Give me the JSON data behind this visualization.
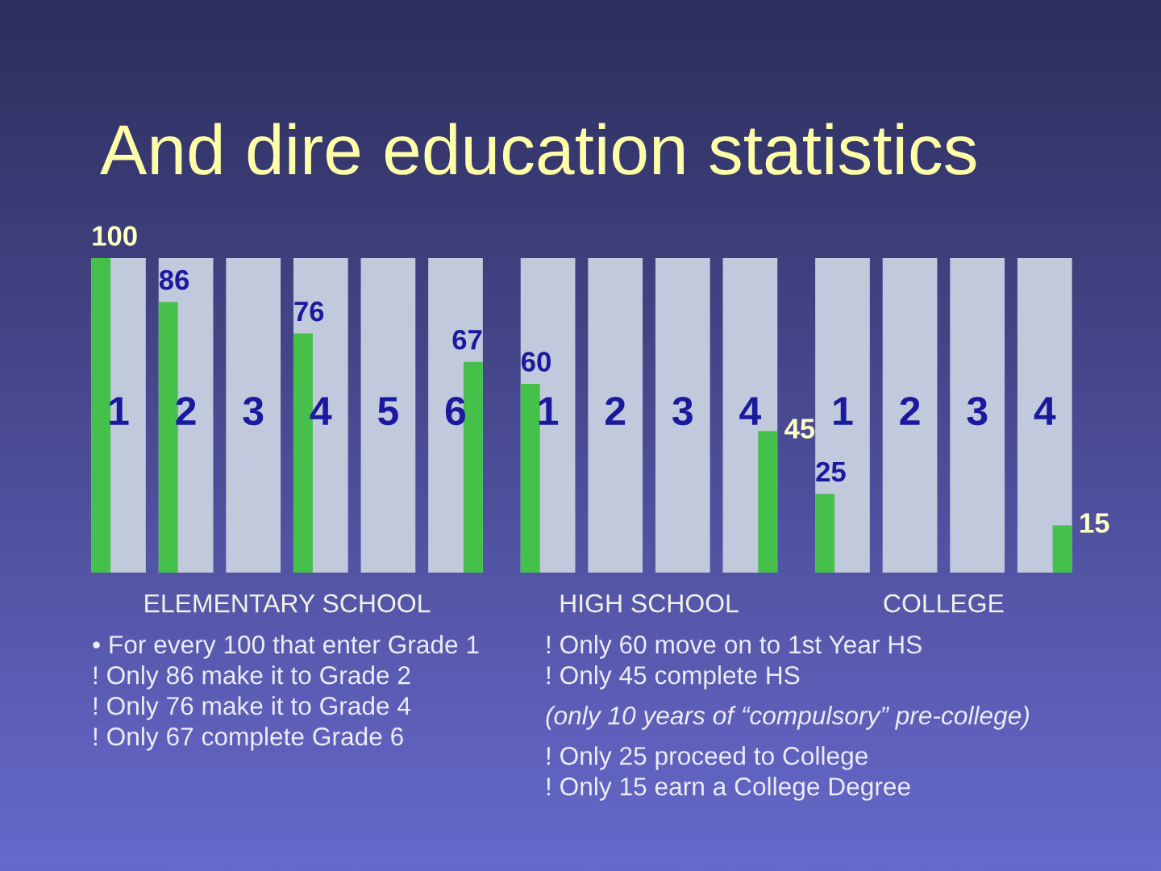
{
  "chart_data": [
    {
      "type": "bar",
      "title": "And dire education statistics",
      "xlabel": "ELEMENTARY SCHOOL",
      "categories": [
        "1",
        "2",
        "3",
        "4",
        "5",
        "6"
      ],
      "series": [
        {
          "color": "#c1c9dc",
          "values": [
            100,
            100,
            100,
            100,
            100,
            100
          ]
        },
        {
          "color": "#45c04b",
          "values": [
            100,
            86,
            null,
            76,
            null,
            null
          ],
          "value_labels": [
            "100",
            "86",
            null,
            "76",
            null,
            null
          ]
        },
        {
          "color": "#45c04b",
          "values": [
            null,
            null,
            null,
            null,
            null,
            67
          ],
          "value_labels": [
            null,
            null,
            null,
            null,
            null,
            "67"
          ]
        }
      ],
      "annotations": [
        "• For every 100 that enter Grade 1",
        "! Only 86 make it to Grade 2",
        "! Only 76 make it to Grade 4",
        "! Only 67 complete Grade 6"
      ]
    },
    {
      "type": "bar",
      "xlabel": "HIGH SCHOOL",
      "categories": [
        "1",
        "2",
        "3",
        "4"
      ],
      "series": [
        {
          "color": "#c1c9dc",
          "values": [
            100,
            100,
            100,
            100
          ]
        },
        {
          "color": "#45c04b",
          "values": [
            60,
            null,
            null,
            null
          ],
          "value_labels": [
            "60",
            null,
            null,
            null
          ]
        },
        {
          "color": "#45c04b",
          "values": [
            null,
            null,
            null,
            45
          ],
          "value_labels": [
            null,
            null,
            null,
            "45"
          ]
        }
      ],
      "annotations": [
        "! Only 60 move on to 1st Year HS",
        "! Only 45 complete HS",
        "(only 10 years of “compulsory” pre-college)",
        "! Only 25 proceed to College",
        "! Only 15 earn a College Degree"
      ]
    },
    {
      "type": "bar",
      "xlabel": "COLLEGE",
      "categories": [
        "1",
        "2",
        "3",
        "4"
      ],
      "series": [
        {
          "color": "#c1c9dc",
          "values": [
            100,
            100,
            100,
            100
          ]
        },
        {
          "color": "#45c04b",
          "values": [
            25,
            null,
            null,
            null
          ],
          "value_labels": [
            "25",
            null,
            null,
            null
          ]
        },
        {
          "color": "#45c04b",
          "values": [
            null,
            null,
            null,
            15
          ],
          "value_labels": [
            null,
            null,
            null,
            "15"
          ]
        }
      ]
    }
  ]
}
